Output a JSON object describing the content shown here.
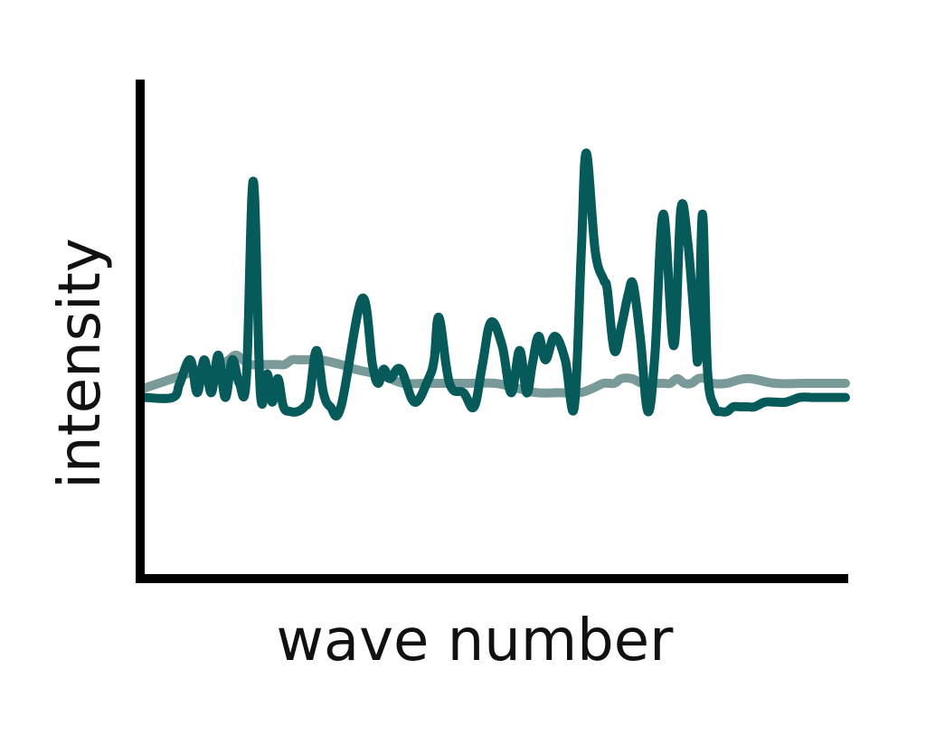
{
  "chart_data": {
    "type": "line",
    "title": "",
    "xlabel": "wave number",
    "ylabel": "intensity",
    "xlim": [
      0,
      100
    ],
    "ylim": [
      0,
      100
    ],
    "grid": false,
    "legend": "none",
    "series": [
      {
        "color": "#065a5a",
        "x": [
          0,
          4,
          5,
          6.5,
          7.5,
          8.5,
          9.5,
          10.5,
          11.5,
          12.5,
          13.5,
          14.5,
          15.5,
          16.5,
          17.5,
          18.2,
          19,
          19.8,
          20.8,
          21.8,
          22.8,
          23.5,
          24.5,
          25.5,
          26.5,
          28,
          31,
          32.5,
          33.3,
          34.1,
          35,
          36.5,
          38.5,
          40.5,
          41.3,
          42,
          43.5,
          45.5,
          47,
          48.2,
          49.4,
          51,
          52.3,
          53.5,
          54.5,
          55.3,
          56.2,
          57.2,
          58.5,
          60,
          61.3,
          62.3,
          63,
          64.3,
          65.5,
          66,
          67,
          68,
          69,
          69.7,
          70.7,
          71.8,
          72.8,
          74,
          75.5,
          76.5,
          77.5,
          78.5,
          79,
          79.6,
          80.3,
          81.3,
          82.2,
          83.1,
          84,
          85,
          86,
          87,
          88.5,
          90,
          91.5,
          93.5,
          95.2,
          97,
          100
        ],
        "y": [
          37,
          37,
          40,
          45,
          38,
          45,
          38,
          46,
          37,
          45,
          40,
          41,
          83,
          38,
          42,
          36,
          41,
          35,
          34,
          34,
          35,
          37,
          47,
          38,
          35,
          35,
          58,
          44,
          40,
          43,
          41,
          43,
          36,
          41,
          45,
          54,
          40,
          38,
          35,
          44,
          53,
          48,
          38,
          47,
          38,
          44,
          50,
          45,
          50,
          45,
          35,
          68,
          89,
          68,
          62,
          60,
          47,
          52,
          59,
          61,
          50,
          34,
          46,
          76,
          48,
          77,
          70,
          52,
          46,
          76,
          43,
          35,
          34,
          34,
          35,
          35,
          35,
          35,
          36,
          36,
          36,
          37,
          37,
          37,
          37
        ]
      },
      {
        "color": "#7a9a99",
        "x": [
          0,
          2,
          4,
          6,
          8,
          10,
          12,
          13,
          14,
          15,
          16,
          17,
          18,
          19,
          20,
          21,
          22,
          23,
          25,
          28,
          30,
          33,
          35,
          37,
          40,
          43,
          46,
          50,
          53,
          56,
          59,
          62,
          64,
          65.5,
          67,
          68,
          69.5,
          71,
          73,
          74,
          75,
          76,
          77,
          78,
          79,
          80,
          81,
          83,
          86,
          90,
          94,
          97,
          100
        ],
        "y": [
          39,
          40,
          41,
          42,
          43,
          43,
          45,
          46,
          45,
          44,
          44,
          44,
          44,
          44,
          44,
          45,
          45,
          45,
          45,
          44,
          43,
          42,
          41,
          40,
          40,
          40,
          40,
          40,
          39,
          38,
          38,
          38,
          39,
          40,
          40,
          41,
          41,
          40,
          40,
          40,
          40,
          41,
          40,
          40,
          41,
          41,
          40,
          40,
          41,
          40,
          40,
          40,
          40
        ]
      }
    ]
  }
}
